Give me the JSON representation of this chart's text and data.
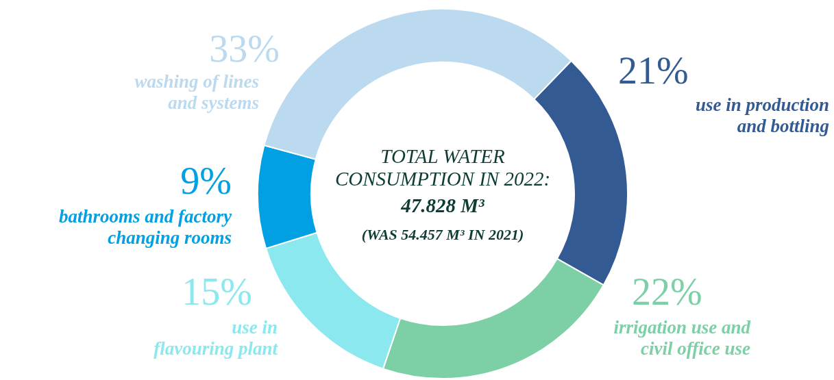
{
  "chart_data": {
    "type": "donut",
    "title": "TOTAL WATER CONSUMPTION IN 2022:",
    "subtitle": "47.828 M³",
    "annotations": [
      "(WAS 54.457 M³ IN 2021)"
    ],
    "categories": [
      "use in production and bottling",
      "irrigation use and civil office use",
      "use in flavouring plant",
      "bathrooms and factory changing rooms",
      "washing of lines and systems"
    ],
    "values": [
      21,
      22,
      15,
      9,
      33
    ],
    "value_labels": [
      "21%",
      "22%",
      "15%",
      "9%",
      "33%"
    ],
    "colors": [
      "#345a93",
      "#7dcfa5",
      "#8ae8ee",
      "#00a0e3",
      "#bbdaf0"
    ]
  }
}
